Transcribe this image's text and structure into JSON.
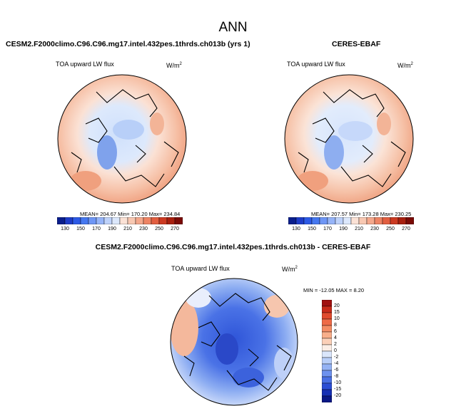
{
  "figure": {
    "title": "ANN",
    "variable": "TOA upward LW flux",
    "units": "W/m",
    "units_exponent": "2"
  },
  "panels": {
    "model": {
      "header": "CESM2.F2000climo.C96.C96.mg17.intel.432pes.1thrds.ch013b (yrs 1)",
      "stats": "MEAN= 204.67  Min= 170.20  Max= 234.84"
    },
    "obs": {
      "header": "CERES-EBAF",
      "stats": "MEAN= 207.57  Min= 173.28  Max= 230.25"
    },
    "diff": {
      "header": "CESM2.F2000climo.C96.C96.mg17.intel.432pes.1thrds.ch013b - CERES-EBAF",
      "stats": "MIN = -12.05 MAX =  8.20"
    }
  },
  "colorbars": {
    "abs_labels": [
      "130",
      "150",
      "170",
      "190",
      "210",
      "230",
      "250",
      "270"
    ],
    "abs_colors": [
      "#0a1e8c",
      "#1e3cc8",
      "#2d5ae6",
      "#4678f0",
      "#6e96f5",
      "#96b4f8",
      "#bed2fa",
      "#dce8fc",
      "#fbe2d6",
      "#f8c8b2",
      "#f4a88c",
      "#ee8464",
      "#e25e40",
      "#cc3a22",
      "#a8200f",
      "#7a0a05"
    ],
    "diff_labels": [
      "20",
      "15",
      "10",
      "8",
      "6",
      "4",
      "2",
      "0",
      "-2",
      "-4",
      "-6",
      "-8",
      "-10",
      "-15",
      "-20"
    ],
    "diff_colors": [
      "#a01010",
      "#c82a1a",
      "#e04a2e",
      "#ee6a46",
      "#f48c64",
      "#f8ae8a",
      "#fbd0b8",
      "#fbeee6",
      "#dae6fb",
      "#b8cef8",
      "#94b2f4",
      "#6e92ee",
      "#4a70e4",
      "#2c4ed4",
      "#1630b4",
      "#0a1886"
    ]
  }
}
